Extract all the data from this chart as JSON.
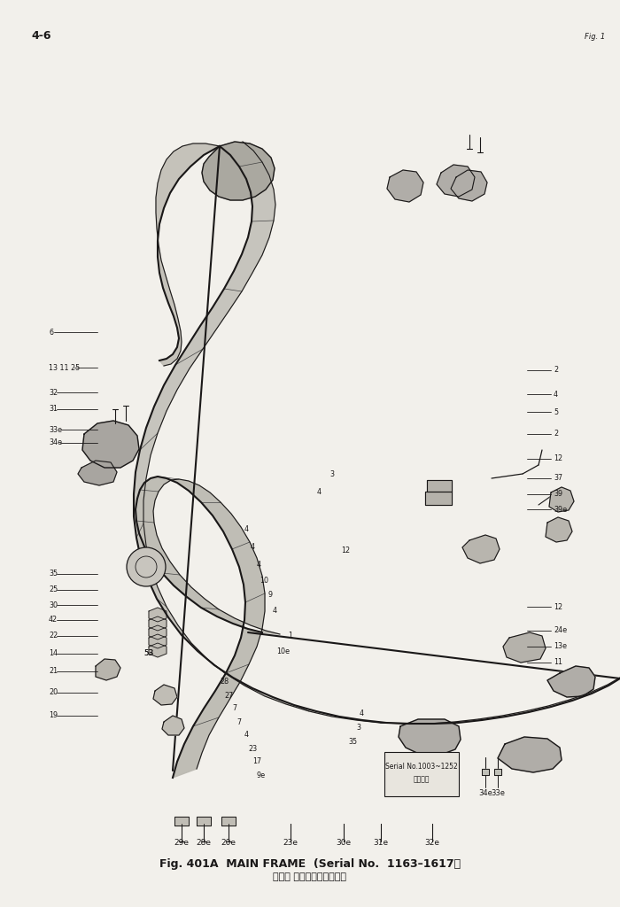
{
  "bg_color": "#f2f0eb",
  "line_color": "#1a1818",
  "fig_width": 7.0,
  "fig_height": 10.24,
  "dpi": 100,
  "title1": "メイン フレーム（適用号機",
  "title2": "Fig. 401A  MAIN FRAME  (Serial No.  1163–1617）",
  "page": "4-6"
}
